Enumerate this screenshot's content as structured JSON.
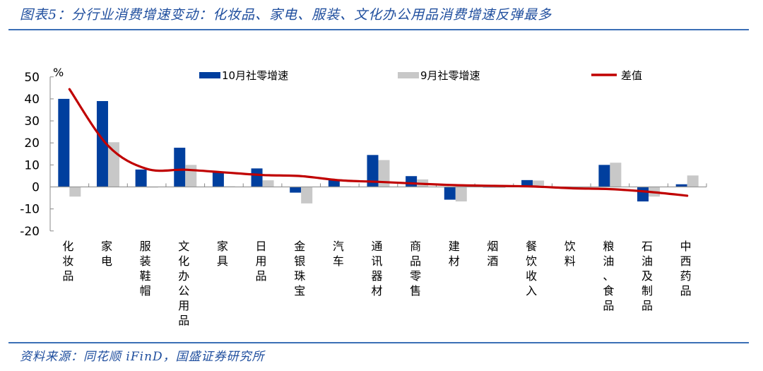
{
  "header": {
    "title": "图表5：分行业消费增速变动：化妆品、家电、服装、文化办公用品消费增速反弹最多"
  },
  "footer": {
    "source": "资料来源：同花顺 iFinD，国盛证券研究所"
  },
  "colors": {
    "oct": "#003f9e",
    "sep": "#c8c8c8",
    "diff": "#c00000",
    "title": "#1f4e9e",
    "rule": "#3b6fb6"
  },
  "chart_data": {
    "type": "bar",
    "title": "分行业消费增速变动",
    "xlabel": "",
    "ylabel": "%",
    "ylim": [
      -20,
      50
    ],
    "yticks": [
      50,
      40,
      30,
      20,
      10,
      0,
      -10,
      -20
    ],
    "grid": false,
    "legend_position": "top",
    "categories": [
      "化妆品",
      "家电",
      "服装鞋帽",
      "文化办公用品",
      "家具",
      "日用品",
      "金银珠宝",
      "汽车",
      "通讯器材",
      "商品零售",
      "建材",
      "烟酒",
      "餐饮收入",
      "饮料",
      "粮油、食品",
      "石油及制品",
      "中西药品"
    ],
    "series": [
      {
        "name": "10月社零增速",
        "type": "bar",
        "values": [
          40.0,
          39.0,
          7.9,
          17.8,
          6.9,
          8.4,
          -2.6,
          3.3,
          14.5,
          4.9,
          -5.8,
          0.0,
          3.1,
          -0.6,
          10.0,
          -6.6,
          1.2
        ]
      },
      {
        "name": "9月社零增速",
        "type": "bar",
        "values": [
          -4.4,
          20.3,
          -0.3,
          10.0,
          0.3,
          3.0,
          -7.5,
          0.3,
          12.2,
          3.4,
          -6.6,
          -0.5,
          2.9,
          0.0,
          11.0,
          -4.4,
          5.2
        ]
      },
      {
        "name": "差值",
        "type": "line",
        "values": [
          44.4,
          18.7,
          8.2,
          7.8,
          6.6,
          5.4,
          4.9,
          3.0,
          2.3,
          1.5,
          0.8,
          0.5,
          0.2,
          -0.6,
          -1.0,
          -2.2,
          -4.0
        ]
      }
    ]
  }
}
